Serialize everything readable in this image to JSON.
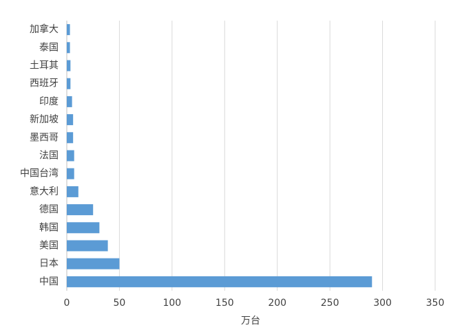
{
  "chart_data": {
    "type": "barh",
    "categories": [
      "加拿大",
      "泰国",
      "土耳其",
      "西班牙",
      "印度",
      "新加坡",
      "墨西哥",
      "法国",
      "中国台湾",
      "意大利",
      "德国",
      "韩国",
      "美国",
      "日本",
      "中国"
    ],
    "values": [
      3,
      3,
      3.5,
      3.5,
      5,
      6,
      6,
      7,
      7,
      11,
      25,
      31,
      39,
      50,
      290
    ],
    "color": "#5b9bd5",
    "xlabel": "万台",
    "xlim": [
      0,
      350
    ],
    "xticks": [
      0,
      50,
      100,
      150,
      200,
      250,
      300,
      350
    ],
    "grid": true
  }
}
